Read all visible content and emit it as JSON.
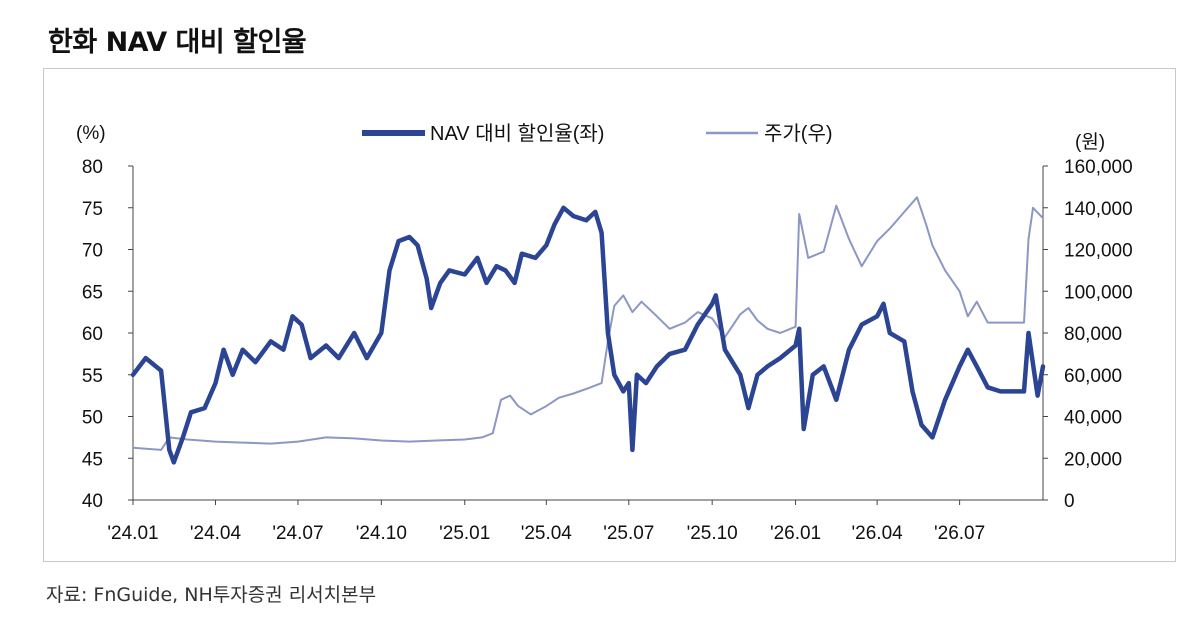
{
  "title": "한화 NAV 대비 할인율",
  "source": "자료: FnGuide, NH투자증권 리서치본부",
  "chart_data": {
    "type": "line",
    "left_unit": "(%)",
    "right_unit": "(원)",
    "ylim_left": [
      40,
      80
    ],
    "ylim_right": [
      0,
      160000
    ],
    "left_ticks": [
      "80",
      "75",
      "70",
      "65",
      "60",
      "55",
      "50",
      "45",
      "40"
    ],
    "right_ticks": [
      "160,000",
      "140,000",
      "120,000",
      "100,000",
      "80,000",
      "60,000",
      "40,000",
      "20,000",
      "0"
    ],
    "x_ticks": [
      "'24.01",
      "'24.04",
      "'24.07",
      "'24.10",
      "'25.01",
      "'25.04",
      "'25.07",
      "'25.10",
      "'26.01",
      "'26.04",
      "'26.07"
    ],
    "x_range": [
      "2024-01",
      "2026-10"
    ],
    "legend_position": "top-center",
    "series": [
      {
        "name": "NAV 대비 할인율(좌)",
        "axis": "left",
        "color": "#2b4594",
        "points": [
          [
            "2024-01",
            55
          ],
          [
            "2024-01-15",
            57
          ],
          [
            "2024-02-01",
            55.5
          ],
          [
            "2024-02-10",
            46
          ],
          [
            "2024-02-15",
            44.5
          ],
          [
            "2024-02-25",
            47.5
          ],
          [
            "2024-03-05",
            50.5
          ],
          [
            "2024-03-20",
            51
          ],
          [
            "2024-04-01",
            54
          ],
          [
            "2024-04-10",
            58
          ],
          [
            "2024-04-20",
            55
          ],
          [
            "2024-05-01",
            58
          ],
          [
            "2024-05-15",
            56.5
          ],
          [
            "2024-06-01",
            59
          ],
          [
            "2024-06-15",
            58
          ],
          [
            "2024-06-25",
            62
          ],
          [
            "2024-07-05",
            61
          ],
          [
            "2024-07-15",
            57
          ],
          [
            "2024-08-01",
            58.5
          ],
          [
            "2024-08-15",
            57
          ],
          [
            "2024-09-01",
            60
          ],
          [
            "2024-09-15",
            57
          ],
          [
            "2024-10-01",
            60
          ],
          [
            "2024-10-10",
            67.5
          ],
          [
            "2024-10-20",
            71
          ],
          [
            "2024-11-01",
            71.5
          ],
          [
            "2024-11-10",
            70.5
          ],
          [
            "2024-11-20",
            66.5
          ],
          [
            "2024-11-25",
            63
          ],
          [
            "2024-12-05",
            66
          ],
          [
            "2024-12-15",
            67.5
          ],
          [
            "2025-01-01",
            67
          ],
          [
            "2025-01-15",
            69
          ],
          [
            "2025-01-25",
            66
          ],
          [
            "2025-02-05",
            68
          ],
          [
            "2025-02-15",
            67.5
          ],
          [
            "2025-02-25",
            66
          ],
          [
            "2025-03-05",
            69.5
          ],
          [
            "2025-03-20",
            69
          ],
          [
            "2025-04-01",
            70.5
          ],
          [
            "2025-04-10",
            73
          ],
          [
            "2025-04-20",
            75
          ],
          [
            "2025-05-01",
            74
          ],
          [
            "2025-05-15",
            73.5
          ],
          [
            "2025-05-25",
            74.5
          ],
          [
            "2025-06-01",
            72
          ],
          [
            "2025-06-08",
            60
          ],
          [
            "2025-06-15",
            55
          ],
          [
            "2025-06-25",
            53
          ],
          [
            "2025-07-01",
            54
          ],
          [
            "2025-07-05",
            46
          ],
          [
            "2025-07-10",
            55
          ],
          [
            "2025-07-20",
            54
          ],
          [
            "2025-08-01",
            56
          ],
          [
            "2025-08-15",
            57.5
          ],
          [
            "2025-09-01",
            58
          ],
          [
            "2025-09-15",
            61
          ],
          [
            "2025-10-01",
            63.5
          ],
          [
            "2025-10-05",
            64.5
          ],
          [
            "2025-10-15",
            58
          ],
          [
            "2025-11-01",
            55
          ],
          [
            "2025-11-10",
            51
          ],
          [
            "2025-11-20",
            55
          ],
          [
            "2025-12-01",
            56
          ],
          [
            "2025-12-15",
            57
          ],
          [
            "2026-01-01",
            58.5
          ],
          [
            "2026-01-05",
            60.5
          ],
          [
            "2026-01-10",
            48.5
          ],
          [
            "2026-01-20",
            55
          ],
          [
            "2026-02-01",
            56
          ],
          [
            "2026-02-15",
            52
          ],
          [
            "2026-03-01",
            58
          ],
          [
            "2026-03-15",
            61
          ],
          [
            "2026-04-01",
            62
          ],
          [
            "2026-04-08",
            63.5
          ],
          [
            "2026-04-15",
            60
          ],
          [
            "2026-05-01",
            59
          ],
          [
            "2026-05-10",
            53
          ],
          [
            "2026-05-20",
            49
          ],
          [
            "2026-06-01",
            47.5
          ],
          [
            "2026-06-15",
            52
          ],
          [
            "2026-07-01",
            56
          ],
          [
            "2026-07-10",
            58
          ],
          [
            "2026-07-20",
            56
          ],
          [
            "2026-08-01",
            53.5
          ],
          [
            "2026-08-15",
            53
          ],
          [
            "2026-09-01",
            53
          ],
          [
            "2026-09-10",
            53
          ],
          [
            "2026-09-15",
            60
          ],
          [
            "2026-09-25",
            52.5
          ],
          [
            "2026-10-01",
            56
          ]
        ]
      },
      {
        "name": "주가(우)",
        "axis": "right",
        "color": "#8c97c4",
        "points": [
          [
            "2024-01",
            25000
          ],
          [
            "2024-02-01",
            24000
          ],
          [
            "2024-02-10",
            30000
          ],
          [
            "2024-03-01",
            29000
          ],
          [
            "2024-04-01",
            28000
          ],
          [
            "2024-05-01",
            27500
          ],
          [
            "2024-06-01",
            27000
          ],
          [
            "2024-07-01",
            28000
          ],
          [
            "2024-08-01",
            30000
          ],
          [
            "2024-09-01",
            29500
          ],
          [
            "2024-10-01",
            28500
          ],
          [
            "2024-11-01",
            28000
          ],
          [
            "2024-12-01",
            28500
          ],
          [
            "2025-01-01",
            29000
          ],
          [
            "2025-01-20",
            30000
          ],
          [
            "2025-02-01",
            32000
          ],
          [
            "2025-02-10",
            48000
          ],
          [
            "2025-02-20",
            50000
          ],
          [
            "2025-03-01",
            45000
          ],
          [
            "2025-03-15",
            41000
          ],
          [
            "2025-04-01",
            45000
          ],
          [
            "2025-04-15",
            49000
          ],
          [
            "2025-05-01",
            51000
          ],
          [
            "2025-05-20",
            54000
          ],
          [
            "2025-06-01",
            56000
          ],
          [
            "2025-06-08",
            76000
          ],
          [
            "2025-06-15",
            93000
          ],
          [
            "2025-06-25",
            98000
          ],
          [
            "2025-07-05",
            90000
          ],
          [
            "2025-07-15",
            95000
          ],
          [
            "2025-08-01",
            88000
          ],
          [
            "2025-08-15",
            82000
          ],
          [
            "2025-09-01",
            85000
          ],
          [
            "2025-09-15",
            90000
          ],
          [
            "2025-10-01",
            87000
          ],
          [
            "2025-10-15",
            78000
          ],
          [
            "2025-11-01",
            89000
          ],
          [
            "2025-11-10",
            92000
          ],
          [
            "2025-11-20",
            86000
          ],
          [
            "2025-12-01",
            82000
          ],
          [
            "2025-12-15",
            80000
          ],
          [
            "2026-01-01",
            83000
          ],
          [
            "2026-01-05",
            137000
          ],
          [
            "2026-01-15",
            116000
          ],
          [
            "2026-02-01",
            119000
          ],
          [
            "2026-02-15",
            141000
          ],
          [
            "2026-03-01",
            125000
          ],
          [
            "2026-03-15",
            112000
          ],
          [
            "2026-04-01",
            124000
          ],
          [
            "2026-04-15",
            130000
          ],
          [
            "2026-05-01",
            138000
          ],
          [
            "2026-05-15",
            145000
          ],
          [
            "2026-05-25",
            132000
          ],
          [
            "2026-06-01",
            122000
          ],
          [
            "2026-06-15",
            110000
          ],
          [
            "2026-07-01",
            100000
          ],
          [
            "2026-07-10",
            88000
          ],
          [
            "2026-07-20",
            95000
          ],
          [
            "2026-08-01",
            85000
          ],
          [
            "2026-09-01",
            85000
          ],
          [
            "2026-09-10",
            85000
          ],
          [
            "2026-09-15",
            125000
          ],
          [
            "2026-09-20",
            140000
          ],
          [
            "2026-10-01",
            135000
          ]
        ]
      }
    ]
  }
}
